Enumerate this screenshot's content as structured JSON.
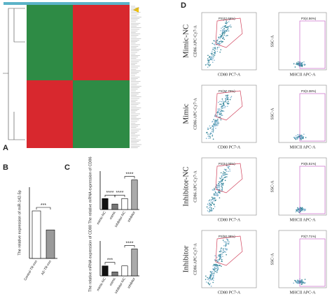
{
  "panels": {
    "a": "A",
    "b": "B",
    "c": "C",
    "d": "D"
  },
  "chart_data": [
    {
      "type": "bar",
      "ylabel": "The relative expression of miR-142-5p",
      "categories": [
        "Control-TR-exo",
        "AE-TR-exo"
      ],
      "values": [
        1.0,
        0.6
      ],
      "colors": [
        "#ffffff",
        "#9a9a9a"
      ],
      "ylim": [
        0,
        1.5
      ],
      "annotations": [
        "***"
      ]
    },
    {
      "type": "bar",
      "ylabel": "The relative mRNA expression of CD86",
      "categories": [
        "mimic-NC",
        "mimic",
        "inhibitor-NC",
        "inhibitor"
      ],
      "values": [
        1.0,
        0.5,
        1.0,
        2.7
      ],
      "colors": [
        "#111111",
        "#777777",
        "#ffffff",
        "#aaaaaa"
      ],
      "ylim": [
        0,
        3.5
      ],
      "annotations": [
        "****",
        "****",
        "****"
      ]
    },
    {
      "type": "bar",
      "ylabel": "The relative mRNA expression of CD80",
      "categories": [
        "mimic-NC",
        "mimic",
        "inhibitor-NC",
        "inhibitor"
      ],
      "values": [
        1.0,
        0.4,
        1.0,
        2.7
      ],
      "colors": [
        "#111111",
        "#777777",
        "#ffffff",
        "#aaaaaa"
      ],
      "ylim": [
        0,
        3.5
      ],
      "annotations": [
        "***",
        "****"
      ]
    }
  ],
  "flow": {
    "rows": [
      "Mimic-NC",
      "Mimic",
      "Inhibitor-NC",
      "Inhibitor"
    ],
    "left_x": "CD80 PC7-A",
    "left_y": "CD86 APC-Cy7-A",
    "right_x": "MHCII APC-A",
    "right_y": "SSC-A",
    "left_gates": [
      "P2(42.66%)",
      "P2(37.70%)",
      "P2(44.00%)",
      "P2(50.38%)"
    ],
    "right_gates": [
      "P3(4.56%)",
      "P3(3.38%)",
      "P3(5.51%)",
      "P3(7.71%)"
    ]
  }
}
